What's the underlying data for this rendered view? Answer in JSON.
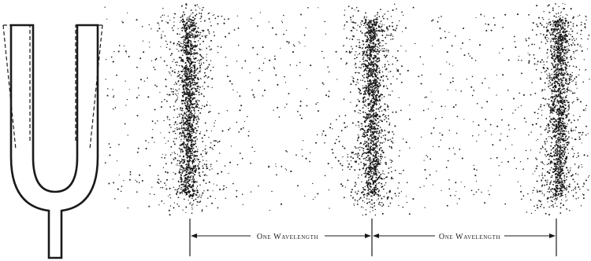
{
  "figure": {
    "kind": "tuning fork emitting sound waves: compressions and rarefactions",
    "compression_count": 3,
    "wavelength_labels": [
      {
        "text": "One Wavelength"
      },
      {
        "text": "One Wavelength"
      }
    ]
  },
  "colors": {
    "ink": "#1a1a1a",
    "background": "#ffffff"
  }
}
